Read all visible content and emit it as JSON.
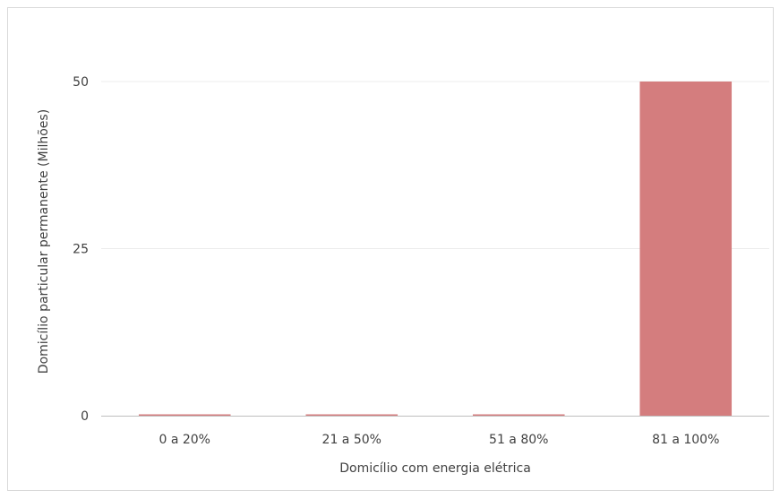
{
  "chart_data": {
    "type": "bar",
    "title": "",
    "xlabel": "Domicílio com energia elétrica",
    "ylabel": "Domicílio particular permanente (Milhões)",
    "categories": [
      "0 a 20%",
      "21 a 50%",
      "51 a 80%",
      "81 a 100%"
    ],
    "values": [
      0.15,
      0.15,
      0.15,
      50
    ],
    "ylim": [
      0,
      50
    ],
    "yticks": [
      "0",
      "25",
      "50"
    ],
    "ytick_values": [
      0,
      25,
      50
    ],
    "grid": true,
    "legend": "none",
    "colors": {
      "bar": "#d47d7e",
      "grid": "#ececec",
      "axis": "#bfbfbf",
      "text": "#404040"
    }
  }
}
